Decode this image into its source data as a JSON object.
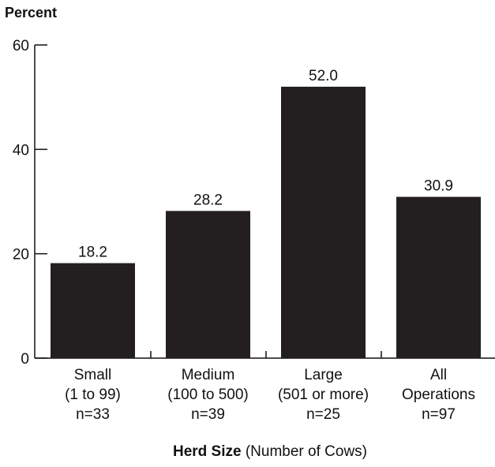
{
  "chart_data": {
    "type": "bar",
    "ylabel": "Percent",
    "xlabel_bold": "Herd Size",
    "xlabel_rest": " (Number of Cows)",
    "ylim": [
      0,
      60
    ],
    "yticks": [
      0,
      20,
      40,
      60
    ],
    "grid": false,
    "bar_color": "#231f20",
    "categories": [
      {
        "lines": [
          "Small",
          "(1 to 99)",
          "n=33"
        ],
        "value": 18.2,
        "label": "18.2"
      },
      {
        "lines": [
          "Medium",
          "(100 to 500)",
          "n=39"
        ],
        "value": 28.2,
        "label": "28.2"
      },
      {
        "lines": [
          "Large",
          "(501 or more)",
          "n=25"
        ],
        "value": 52.0,
        "label": "52.0"
      },
      {
        "lines": [
          "All",
          "Operations",
          "n=97"
        ],
        "value": 30.9,
        "label": "30.9"
      }
    ]
  }
}
